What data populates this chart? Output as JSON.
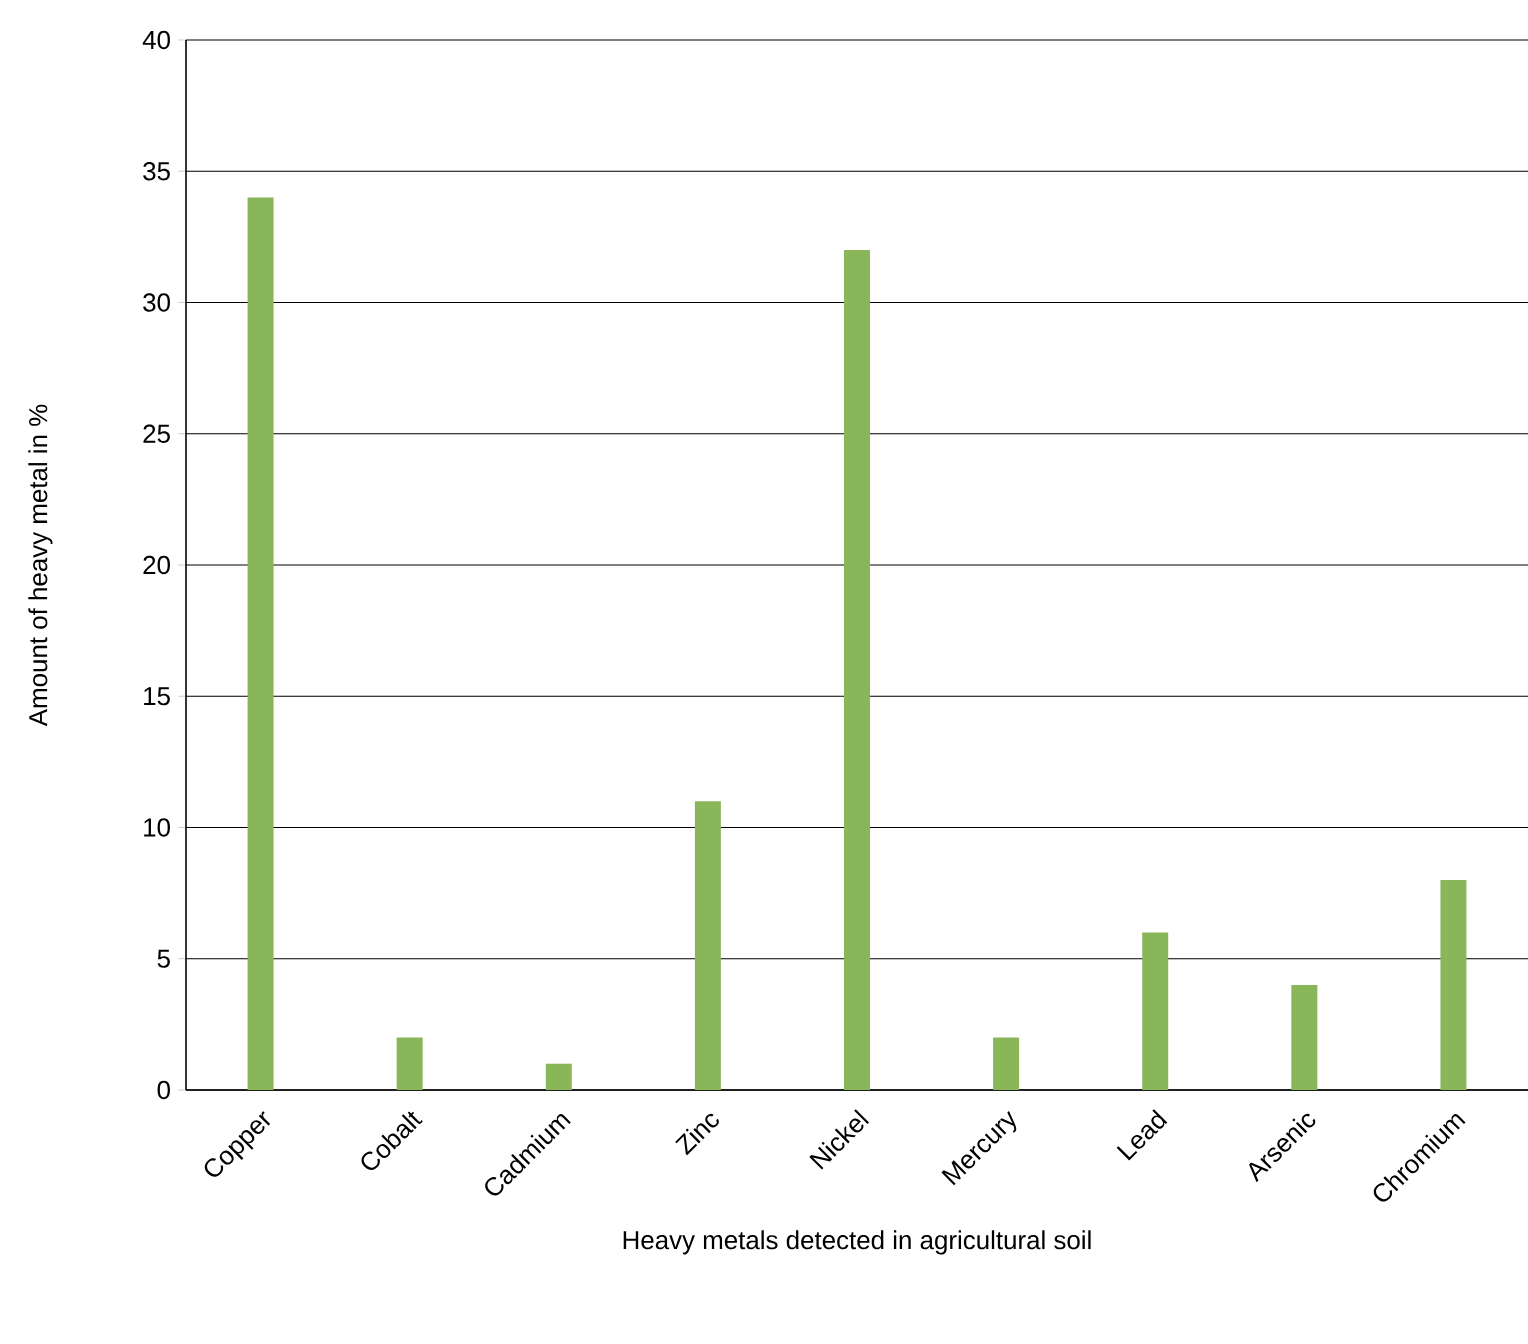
{
  "chart_data": {
    "type": "bar",
    "xlabel": "Heavy metals detected in agricultural soil",
    "ylabel": "Amount of heavy metal in %",
    "categories": [
      "Copper",
      "Cobalt",
      "Cadmium",
      "Zinc",
      "Nickel",
      "Mercury",
      "Lead",
      "Arsenic",
      "Chromium"
    ],
    "values": [
      34,
      2,
      1,
      11,
      32,
      2,
      6,
      4,
      8
    ],
    "color": "#8ab65a",
    "ylim": [
      0,
      40
    ],
    "yticks": [
      0,
      5,
      10,
      15,
      20,
      25,
      30,
      35,
      40
    ],
    "grid": "y"
  }
}
